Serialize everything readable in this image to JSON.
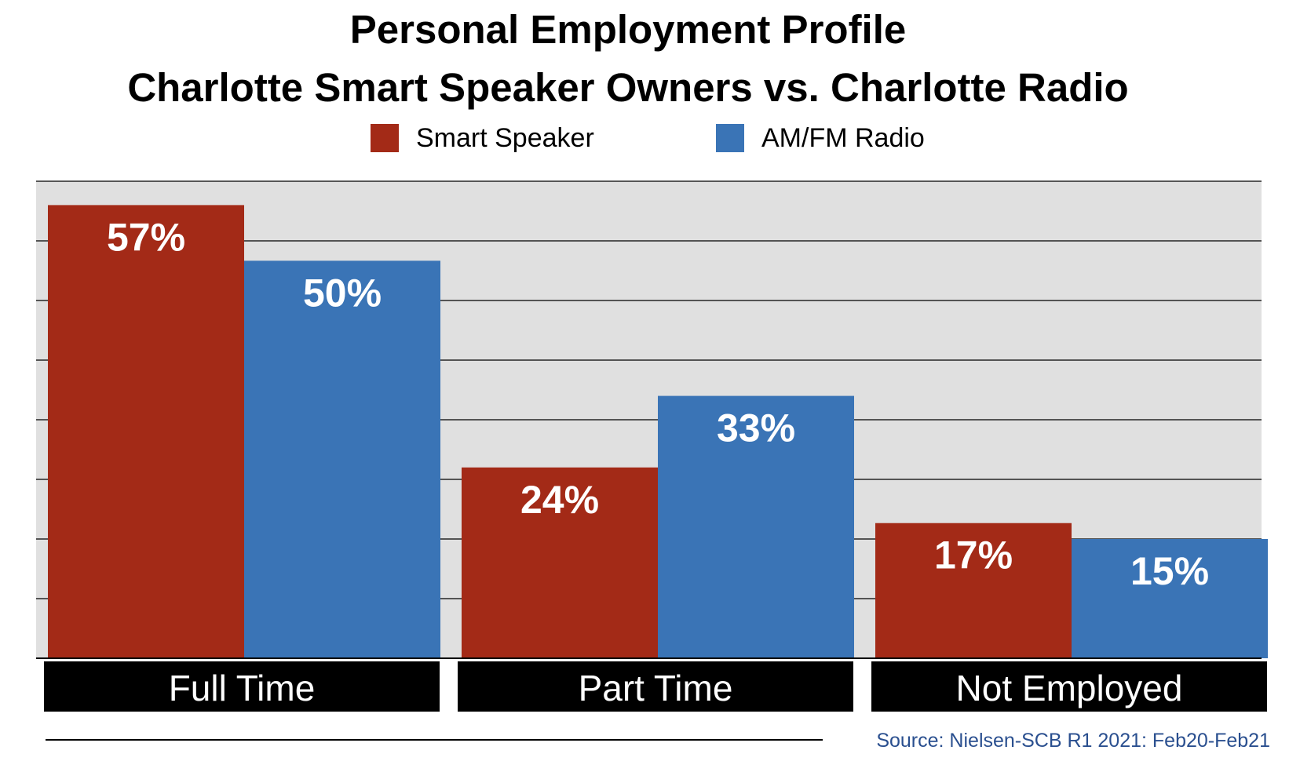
{
  "chart_data": {
    "type": "bar",
    "title": "Personal Employment Profile",
    "subtitle": "Charlotte Smart Speaker Owners vs. Charlotte Radio",
    "categories": [
      "Full Time",
      "Part Time",
      "Not Employed"
    ],
    "series": [
      {
        "name": "Smart Speaker",
        "values": [
          57,
          24,
          17
        ],
        "labels": [
          "57%",
          "24%",
          "17%"
        ],
        "color": "#a32a17"
      },
      {
        "name": "AM/FM Radio",
        "values": [
          50,
          33,
          15
        ],
        "labels": [
          "50%",
          "33%",
          "15%"
        ],
        "color": "#3a74b6"
      }
    ],
    "ylim": [
      0,
      60
    ],
    "grid": true,
    "legend": "top-center",
    "xlabel": "",
    "ylabel": "",
    "source": "Source: Nielsen-SCB R1 2021: Feb20-Feb21",
    "colors": {
      "plot_background": "#e0e0e0",
      "category_bar": "#000000",
      "category_text": "#ffffff",
      "value_label": "#ffffff",
      "source_text": "#2a4f8f"
    }
  }
}
